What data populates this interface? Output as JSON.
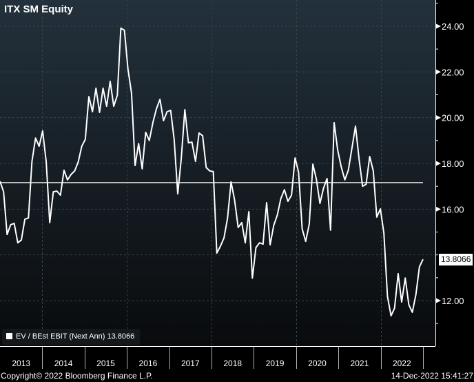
{
  "header": {
    "title": "ITX SM Equity"
  },
  "footer": {
    "copyright": "Copyright© 2022 Bloomberg Finance L.P.",
    "timestamp": "14-Dec-2022 15:41:27"
  },
  "colors": {
    "line": "#ffffff",
    "bg_top": "#23313c",
    "bg_bottom": "#090b0d"
  },
  "chart_data": {
    "type": "line",
    "title": "ITX SM Equity",
    "frequency": "monthly",
    "x_range": [
      "Dec 2012",
      "Dec 2022"
    ],
    "xticks": [
      "2013",
      "2014",
      "2015",
      "2016",
      "2017",
      "2018",
      "2019",
      "2020",
      "2021",
      "2022"
    ],
    "yticks": [
      "12.00",
      "16.00",
      "18.00",
      "20.00",
      "22.00",
      "24.00"
    ],
    "ylim": [
      10.5,
      25
    ],
    "grid": true,
    "legend_position": "bottom-left",
    "average_line": 17.16,
    "last_value_label": "13.8066",
    "series": [
      {
        "name": "EV / BEst EBIT (Next Ann)",
        "legend_label": "EV / BEst EBIT (Next Ann) 13.8066",
        "values": [
          17.22,
          16.76,
          14.89,
          15.32,
          15.38,
          14.53,
          14.65,
          15.56,
          15.62,
          18.09,
          19.11,
          18.75,
          19.42,
          18.06,
          15.41,
          16.76,
          16.79,
          16.61,
          17.7,
          17.28,
          17.52,
          17.67,
          18.06,
          18.75,
          19.05,
          20.92,
          20.26,
          21.29,
          20.23,
          21.29,
          20.5,
          21.59,
          20.5,
          20.98,
          23.91,
          23.82,
          22.13,
          21.07,
          17.91,
          18.87,
          17.76,
          19.36,
          19.0,
          19.78,
          20.38,
          20.8,
          19.87,
          20.26,
          20.32,
          19.05,
          16.67,
          18.21,
          20.35,
          18.9,
          18.93,
          18.09,
          19.33,
          19.21,
          17.82,
          17.67,
          17.64,
          14.08,
          14.38,
          14.74,
          15.59,
          17.19,
          16.4,
          15.2,
          15.41,
          14.53,
          15.89,
          12.99,
          14.32,
          14.53,
          14.47,
          16.28,
          14.44,
          15.29,
          15.74,
          16.46,
          16.85,
          16.34,
          16.61,
          18.24,
          17.61,
          15.14,
          14.59,
          15.35,
          17.97,
          17.31,
          16.25,
          16.91,
          17.34,
          15.08,
          19.78,
          18.57,
          17.85,
          17.28,
          17.7,
          18.66,
          19.63,
          18.21,
          17.0,
          17.09,
          18.3,
          17.67,
          15.65,
          16.01,
          14.95,
          12.18,
          11.34,
          11.67,
          13.18,
          11.94,
          12.99,
          11.82,
          11.49,
          12.27,
          13.48,
          13.8066
        ]
      }
    ]
  }
}
